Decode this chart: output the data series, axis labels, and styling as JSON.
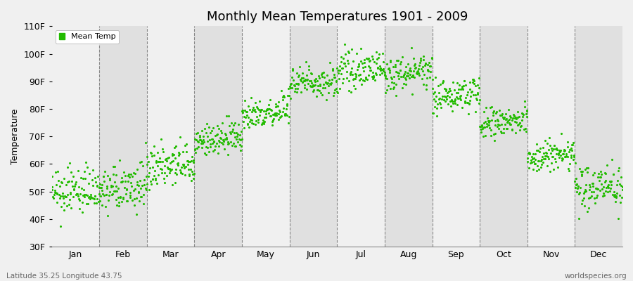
{
  "title": "Monthly Mean Temperatures 1901 - 2009",
  "ylabel": "Temperature",
  "ylim": [
    30,
    110
  ],
  "yticks": [
    30,
    40,
    50,
    60,
    70,
    80,
    90,
    100,
    110
  ],
  "ytick_labels": [
    "30F",
    "40F",
    "50F",
    "60F",
    "70F",
    "80F",
    "90F",
    "100F",
    "110F"
  ],
  "months": [
    "Jan",
    "Feb",
    "Mar",
    "Apr",
    "May",
    "Jun",
    "Jul",
    "Aug",
    "Sep",
    "Oct",
    "Nov",
    "Dec"
  ],
  "dot_color": "#22BB00",
  "bg_color_light": "#F0F0F0",
  "bg_color_dark": "#E0E0E0",
  "legend_label": "Mean Temp",
  "footer_left": "Latitude 35.25 Longitude 43.75",
  "footer_right": "worldspecies.org",
  "n_years": 109,
  "monthly_mean_F": [
    49,
    50,
    58,
    68,
    78,
    89,
    93,
    92,
    84,
    74,
    62,
    51
  ],
  "monthly_std_F": [
    4,
    4,
    4,
    3,
    3,
    3,
    3,
    3,
    3,
    3,
    3,
    4
  ],
  "trend_per_year": [
    0.02,
    0.02,
    0.02,
    0.02,
    0.02,
    0.02,
    0.02,
    0.02,
    0.02,
    0.02,
    0.02,
    0.02
  ]
}
